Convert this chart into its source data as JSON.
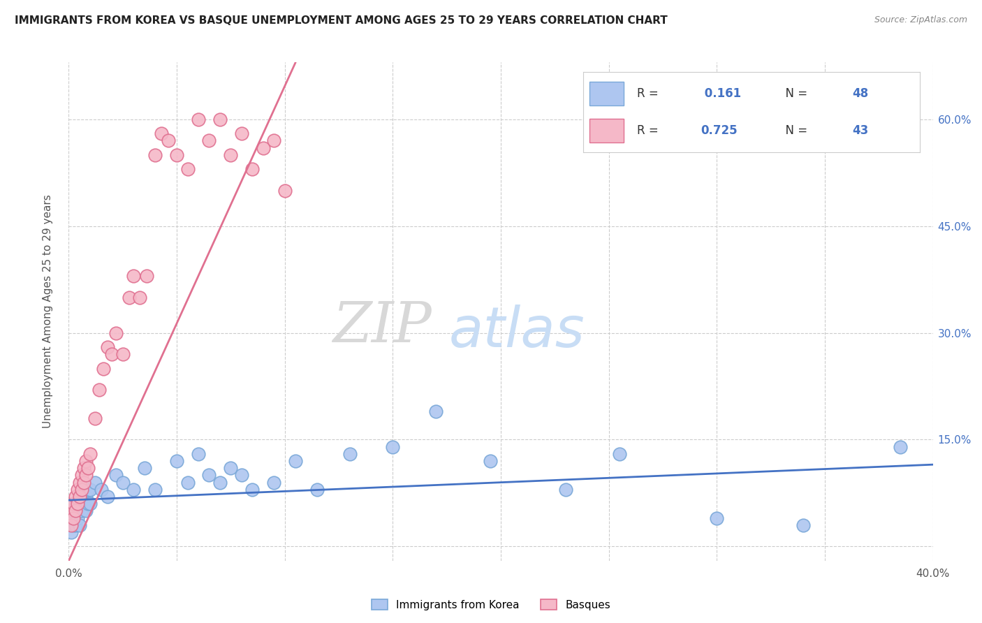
{
  "title": "IMMIGRANTS FROM KOREA VS BASQUE UNEMPLOYMENT AMONG AGES 25 TO 29 YEARS CORRELATION CHART",
  "source": "Source: ZipAtlas.com",
  "ylabel_left": "Unemployment Among Ages 25 to 29 years",
  "xlim": [
    0.0,
    0.4
  ],
  "ylim": [
    -0.02,
    0.68
  ],
  "ytick_right_vals": [
    0.15,
    0.3,
    0.45,
    0.6
  ],
  "ytick_right_labels": [
    "15.0%",
    "30.0%",
    "45.0%",
    "60.0%"
  ],
  "grid_color": "#cccccc",
  "background_color": "#ffffff",
  "series1_name": "Immigrants from Korea",
  "series1_color": "#aec6f0",
  "series1_edge_color": "#7aa8d8",
  "series1_R": "0.161",
  "series1_N": "48",
  "series2_name": "Basques",
  "series2_color": "#f5b8c8",
  "series2_edge_color": "#e07090",
  "series2_R": "0.725",
  "series2_N": "43",
  "line1_color": "#4472c4",
  "line2_color": "#e07090",
  "watermark_zip": "ZIP",
  "watermark_atlas": "atlas",
  "watermark_zip_color": "#d8d8d8",
  "watermark_atlas_color": "#c8ddf5",
  "legend_R_color": "#4472c4",
  "legend_N_color": "#4472c4",
  "korea_x": [
    0.001,
    0.001,
    0.002,
    0.002,
    0.003,
    0.003,
    0.004,
    0.004,
    0.005,
    0.005,
    0.006,
    0.006,
    0.007,
    0.007,
    0.008,
    0.008,
    0.009,
    0.009,
    0.01,
    0.01,
    0.012,
    0.015,
    0.018,
    0.022,
    0.025,
    0.03,
    0.035,
    0.04,
    0.05,
    0.055,
    0.06,
    0.065,
    0.07,
    0.075,
    0.08,
    0.085,
    0.095,
    0.105,
    0.115,
    0.13,
    0.15,
    0.17,
    0.195,
    0.23,
    0.255,
    0.3,
    0.34,
    0.385
  ],
  "korea_y": [
    0.02,
    0.04,
    0.03,
    0.05,
    0.03,
    0.06,
    0.04,
    0.06,
    0.03,
    0.07,
    0.05,
    0.07,
    0.06,
    0.08,
    0.05,
    0.07,
    0.06,
    0.08,
    0.06,
    0.08,
    0.09,
    0.08,
    0.07,
    0.1,
    0.09,
    0.08,
    0.11,
    0.08,
    0.12,
    0.09,
    0.13,
    0.1,
    0.09,
    0.11,
    0.1,
    0.08,
    0.09,
    0.12,
    0.08,
    0.13,
    0.14,
    0.19,
    0.12,
    0.08,
    0.13,
    0.04,
    0.03,
    0.14
  ],
  "basque_x": [
    0.001,
    0.001,
    0.002,
    0.002,
    0.003,
    0.003,
    0.004,
    0.004,
    0.005,
    0.005,
    0.006,
    0.006,
    0.007,
    0.007,
    0.008,
    0.008,
    0.009,
    0.01,
    0.012,
    0.014,
    0.016,
    0.018,
    0.02,
    0.022,
    0.025,
    0.028,
    0.03,
    0.033,
    0.036,
    0.04,
    0.043,
    0.046,
    0.05,
    0.055,
    0.06,
    0.065,
    0.07,
    0.075,
    0.08,
    0.085,
    0.09,
    0.095,
    0.1
  ],
  "basque_y": [
    0.03,
    0.05,
    0.04,
    0.06,
    0.05,
    0.07,
    0.06,
    0.08,
    0.07,
    0.09,
    0.08,
    0.1,
    0.09,
    0.11,
    0.1,
    0.12,
    0.11,
    0.13,
    0.18,
    0.22,
    0.25,
    0.28,
    0.27,
    0.3,
    0.27,
    0.35,
    0.38,
    0.35,
    0.38,
    0.55,
    0.58,
    0.57,
    0.55,
    0.53,
    0.6,
    0.57,
    0.6,
    0.55,
    0.58,
    0.53,
    0.56,
    0.57,
    0.5
  ],
  "line1_x": [
    0.0,
    0.4
  ],
  "line1_y": [
    0.065,
    0.115
  ],
  "line2_x": [
    0.0,
    0.105
  ],
  "line2_y": [
    -0.02,
    0.68
  ]
}
